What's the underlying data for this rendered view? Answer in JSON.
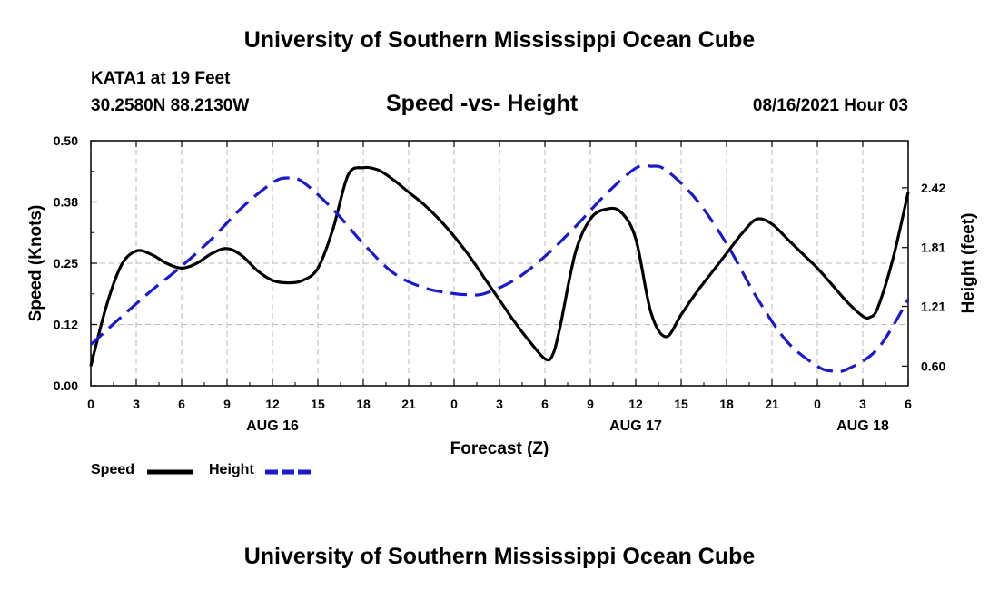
{
  "header": {
    "top_title": "University of Southern Mississippi Ocean Cube",
    "station": "KATA1 at 19 Feet",
    "coords": "30.2580N  88.2130W",
    "chart_title": "Speed -vs- Height",
    "datetime": "08/16/2021 Hour 03",
    "bottom_title": "University of Southern Mississippi Ocean Cube"
  },
  "legend": {
    "speed_label": "Speed",
    "height_label": "Height"
  },
  "colors": {
    "speed": "#000000",
    "height": "#1a1acc",
    "grid": "#bbbbbb"
  },
  "chart_data": {
    "type": "line",
    "title": "Speed -vs- Height",
    "xlabel": "Forecast (Z)",
    "ylabel": "Speed (Knots)",
    "y2label": "Height (feet)",
    "xlim": [
      0,
      54
    ],
    "ylim": [
      0,
      0.5
    ],
    "y2lim": [
      0.4,
      2.9
    ],
    "x_ticks": [
      0,
      3,
      6,
      9,
      12,
      15,
      18,
      21,
      24,
      27,
      30,
      33,
      36,
      39,
      42,
      45,
      48,
      51,
      54
    ],
    "x_tick_labels": [
      "0",
      "3",
      "6",
      "9",
      "12",
      "15",
      "18",
      "21",
      "0",
      "3",
      "6",
      "9",
      "12",
      "15",
      "18",
      "21",
      "0",
      "3",
      "6"
    ],
    "y_ticks": [
      0,
      0.125,
      0.25,
      0.375,
      0.5
    ],
    "y_tick_labels": [
      "0.00",
      "0.12",
      "0.25",
      "0.38",
      "0.50"
    ],
    "y2_ticks": [
      0.6,
      1.21,
      1.81,
      2.42
    ],
    "y2_tick_labels": [
      "0.60",
      "1.21",
      "1.81",
      "2.42"
    ],
    "day_labels": [
      {
        "x": 12,
        "label": "AUG 16"
      },
      {
        "x": 36,
        "label": "AUG 17"
      },
      {
        "x": 51,
        "label": "AUG 18"
      }
    ],
    "grid": true,
    "series": [
      {
        "name": "Speed",
        "axis": "left",
        "style": "solid",
        "x": [
          0,
          1,
          2,
          3,
          4,
          5,
          6,
          7,
          8,
          9,
          10,
          11,
          12,
          13,
          14,
          15,
          16,
          17,
          18,
          19,
          20,
          21,
          22,
          23,
          24,
          25,
          26,
          27,
          28,
          29,
          30,
          30.5,
          31,
          32,
          33,
          34,
          35,
          36,
          37,
          38,
          39,
          40,
          41,
          42,
          43,
          44,
          45,
          46,
          47,
          48,
          49,
          50,
          51,
          51.5,
          52,
          53,
          54
        ],
        "y": [
          0.04,
          0.16,
          0.245,
          0.275,
          0.268,
          0.25,
          0.24,
          0.25,
          0.27,
          0.28,
          0.265,
          0.235,
          0.215,
          0.21,
          0.215,
          0.24,
          0.32,
          0.43,
          0.445,
          0.44,
          0.42,
          0.395,
          0.37,
          0.34,
          0.305,
          0.265,
          0.22,
          0.175,
          0.13,
          0.09,
          0.055,
          0.062,
          0.12,
          0.27,
          0.34,
          0.36,
          0.355,
          0.3,
          0.15,
          0.1,
          0.145,
          0.19,
          0.23,
          0.27,
          0.31,
          0.34,
          0.33,
          0.3,
          0.27,
          0.24,
          0.205,
          0.17,
          0.142,
          0.14,
          0.16,
          0.26,
          0.395
        ]
      },
      {
        "name": "Height",
        "axis": "right",
        "style": "dashed",
        "x": [
          0,
          2,
          4,
          6,
          8,
          10,
          12,
          13,
          14,
          16,
          18,
          20,
          22,
          24,
          25,
          26,
          28,
          30,
          32,
          34,
          36,
          37,
          38,
          40,
          42,
          44,
          46,
          48,
          49,
          50,
          52,
          54
        ],
        "y": [
          0.82,
          1.1,
          1.37,
          1.62,
          1.9,
          2.22,
          2.47,
          2.52,
          2.48,
          2.2,
          1.85,
          1.55,
          1.4,
          1.34,
          1.33,
          1.34,
          1.48,
          1.72,
          2.02,
          2.35,
          2.62,
          2.64,
          2.6,
          2.3,
          1.85,
          1.3,
          0.85,
          0.6,
          0.55,
          0.57,
          0.78,
          1.28
        ]
      }
    ]
  }
}
